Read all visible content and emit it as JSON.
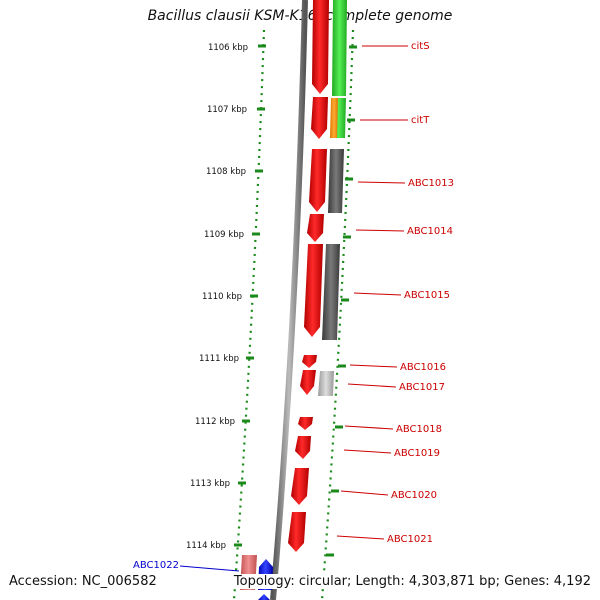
{
  "title": "Bacillus clausii KSM-K16, complete genome",
  "footer": {
    "accession": "Accession: NC_006582",
    "topology": "Topology: circular; Length: 4,303,871 bp; Genes: 4,192"
  },
  "ruler_ticks": [
    "1106 kbp",
    "1107 kbp",
    "1108 kbp",
    "1109 kbp",
    "1110 kbp",
    "1111 kbp",
    "1112 kbp",
    "1113 kbp",
    "1114 kbp"
  ],
  "gene_labels": [
    "citS",
    "citT",
    "ABC1013",
    "ABC1014",
    "ABC1015",
    "ABC1016",
    "ABC1017",
    "ABC1018",
    "ABC1019",
    "ABC1020",
    "ABC1021",
    "ABC1022"
  ],
  "colors": {
    "gene_red": "#ff0000",
    "gene_label": "#cc0000",
    "blue_label": "#0000cc",
    "green_gene": "#33cc33",
    "orange_gene": "#ff9900",
    "gray_gene": "#666666",
    "light_gray_gene": "#bbbbbb",
    "blue_gene": "#0000ff",
    "pink_gene": "#e07070",
    "dotted_track": "#1a8a1a",
    "backbone": "#888888"
  }
}
